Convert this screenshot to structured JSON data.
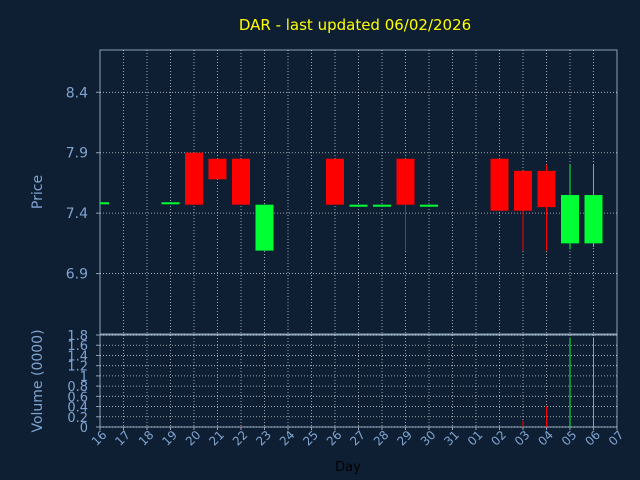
{
  "chart_data": {
    "type": "candlestick",
    "title": "DAR - last updated 06/02/2026",
    "xlabel": "Day",
    "ylabel": "Price",
    "volume_label": "Volume (0000)",
    "x_ticks": [
      "16",
      "17",
      "18",
      "19",
      "20",
      "21",
      "22",
      "23",
      "24",
      "25",
      "26",
      "27",
      "28",
      "29",
      "30",
      "31",
      "01",
      "02",
      "03",
      "04",
      "05",
      "06",
      "07"
    ],
    "price_ticks": [
      "6.9",
      "7.4",
      "7.9",
      "8.4"
    ],
    "volume_ticks": [
      "0",
      "0.2",
      "0.4",
      "0.6",
      "0.8",
      "1",
      "1.2",
      "1.4",
      "1.6",
      "1.8"
    ],
    "ylim": [
      6.4,
      8.75
    ],
    "volume_ylim": [
      0,
      1.8
    ],
    "grid": true,
    "colors": {
      "background": "#0f1f33",
      "grid": "#ffffff",
      "up": "#00ff33",
      "down": "#ff0000",
      "title": "#ffff00",
      "axis_text": "#7fa4d0"
    },
    "candles": [
      {
        "day": "16",
        "open": 7.49,
        "high": 7.49,
        "low": 7.49,
        "close": 7.49,
        "volume": 0
      },
      {
        "day": "19",
        "open": 7.49,
        "high": 7.49,
        "low": 7.49,
        "close": 7.49,
        "volume": 0
      },
      {
        "day": "20",
        "open": 7.9,
        "high": 7.9,
        "low": 7.47,
        "close": 7.47,
        "volume": 0
      },
      {
        "day": "21",
        "open": 7.85,
        "high": 7.85,
        "low": 7.68,
        "close": 7.68,
        "volume": 0
      },
      {
        "day": "22",
        "open": 7.85,
        "high": 7.85,
        "low": 7.47,
        "close": 7.47,
        "volume": 0.02
      },
      {
        "day": "23",
        "open": 7.09,
        "high": 7.47,
        "low": 7.09,
        "close": 7.47,
        "volume": 0
      },
      {
        "day": "26",
        "open": 7.85,
        "high": 7.85,
        "low": 7.47,
        "close": 7.47,
        "volume": 0
      },
      {
        "day": "27",
        "open": 7.47,
        "high": 7.47,
        "low": 7.47,
        "close": 7.47,
        "volume": 0
      },
      {
        "day": "28",
        "open": 7.47,
        "high": 7.47,
        "low": 7.47,
        "close": 7.47,
        "volume": 0
      },
      {
        "day": "29",
        "open": 7.85,
        "high": 7.85,
        "low": 7.09,
        "close": 7.47,
        "volume": 0
      },
      {
        "day": "30",
        "open": 7.47,
        "high": 7.47,
        "low": 7.47,
        "close": 7.47,
        "volume": 0
      },
      {
        "day": "02",
        "open": 7.85,
        "high": 7.85,
        "low": 7.42,
        "close": 7.42,
        "volume": 0
      },
      {
        "day": "03",
        "open": 7.75,
        "high": 7.75,
        "low": 7.09,
        "close": 7.42,
        "volume": 0.12
      },
      {
        "day": "04",
        "open": 7.75,
        "high": 7.8,
        "low": 7.09,
        "close": 7.45,
        "volume": 0.4
      },
      {
        "day": "05",
        "open": 7.15,
        "high": 7.8,
        "low": 7.1,
        "close": 7.55,
        "volume": 1.75
      },
      {
        "day": "06",
        "open": 7.15,
        "high": 7.8,
        "low": 7.12,
        "close": 7.55,
        "volume": 1.75
      }
    ]
  }
}
